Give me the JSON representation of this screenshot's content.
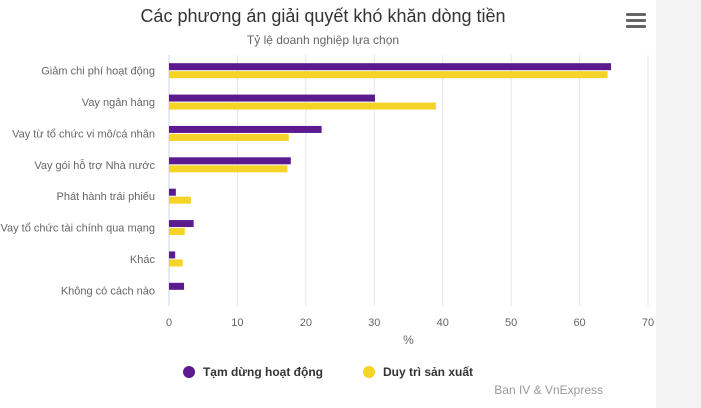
{
  "chart": {
    "title": "Các phương án giải quyết khó khăn dòng tiền",
    "subtitle": "Tỷ lệ doanh nghiệp lựa chọn",
    "credits": "Ban IV & VnExpress"
  },
  "chart_data": {
    "type": "bar",
    "orientation": "horizontal",
    "categories": [
      "Giảm chi phí hoạt động",
      "Vay ngân hàng",
      "Vay từ tổ chức vi mô/cá nhân",
      "Vay gói hỗ trợ Nhà nước",
      "Phát hành trái phiếu",
      "Vay tổ chức tài chính qua mạng",
      "Khác",
      "Không có cách nào"
    ],
    "series": [
      {
        "name": "Tạm dừng hoạt động",
        "color": "#5b1a8e",
        "values": [
          64.6,
          30.1,
          22.3,
          17.8,
          1.0,
          3.6,
          0.9,
          2.2
        ]
      },
      {
        "name": "Duy trì sản xuất",
        "color": "#f5d327",
        "values": [
          64.1,
          39.0,
          17.5,
          17.3,
          3.2,
          2.3,
          2.0,
          0
        ]
      }
    ],
    "xlabel": "%",
    "xlim": [
      0,
      70
    ],
    "xticks": [
      0,
      10,
      20,
      30,
      40,
      50,
      60,
      70
    ],
    "grid": true,
    "legend_position": "bottom"
  },
  "icons": {
    "menu": "hamburger-menu-icon"
  }
}
